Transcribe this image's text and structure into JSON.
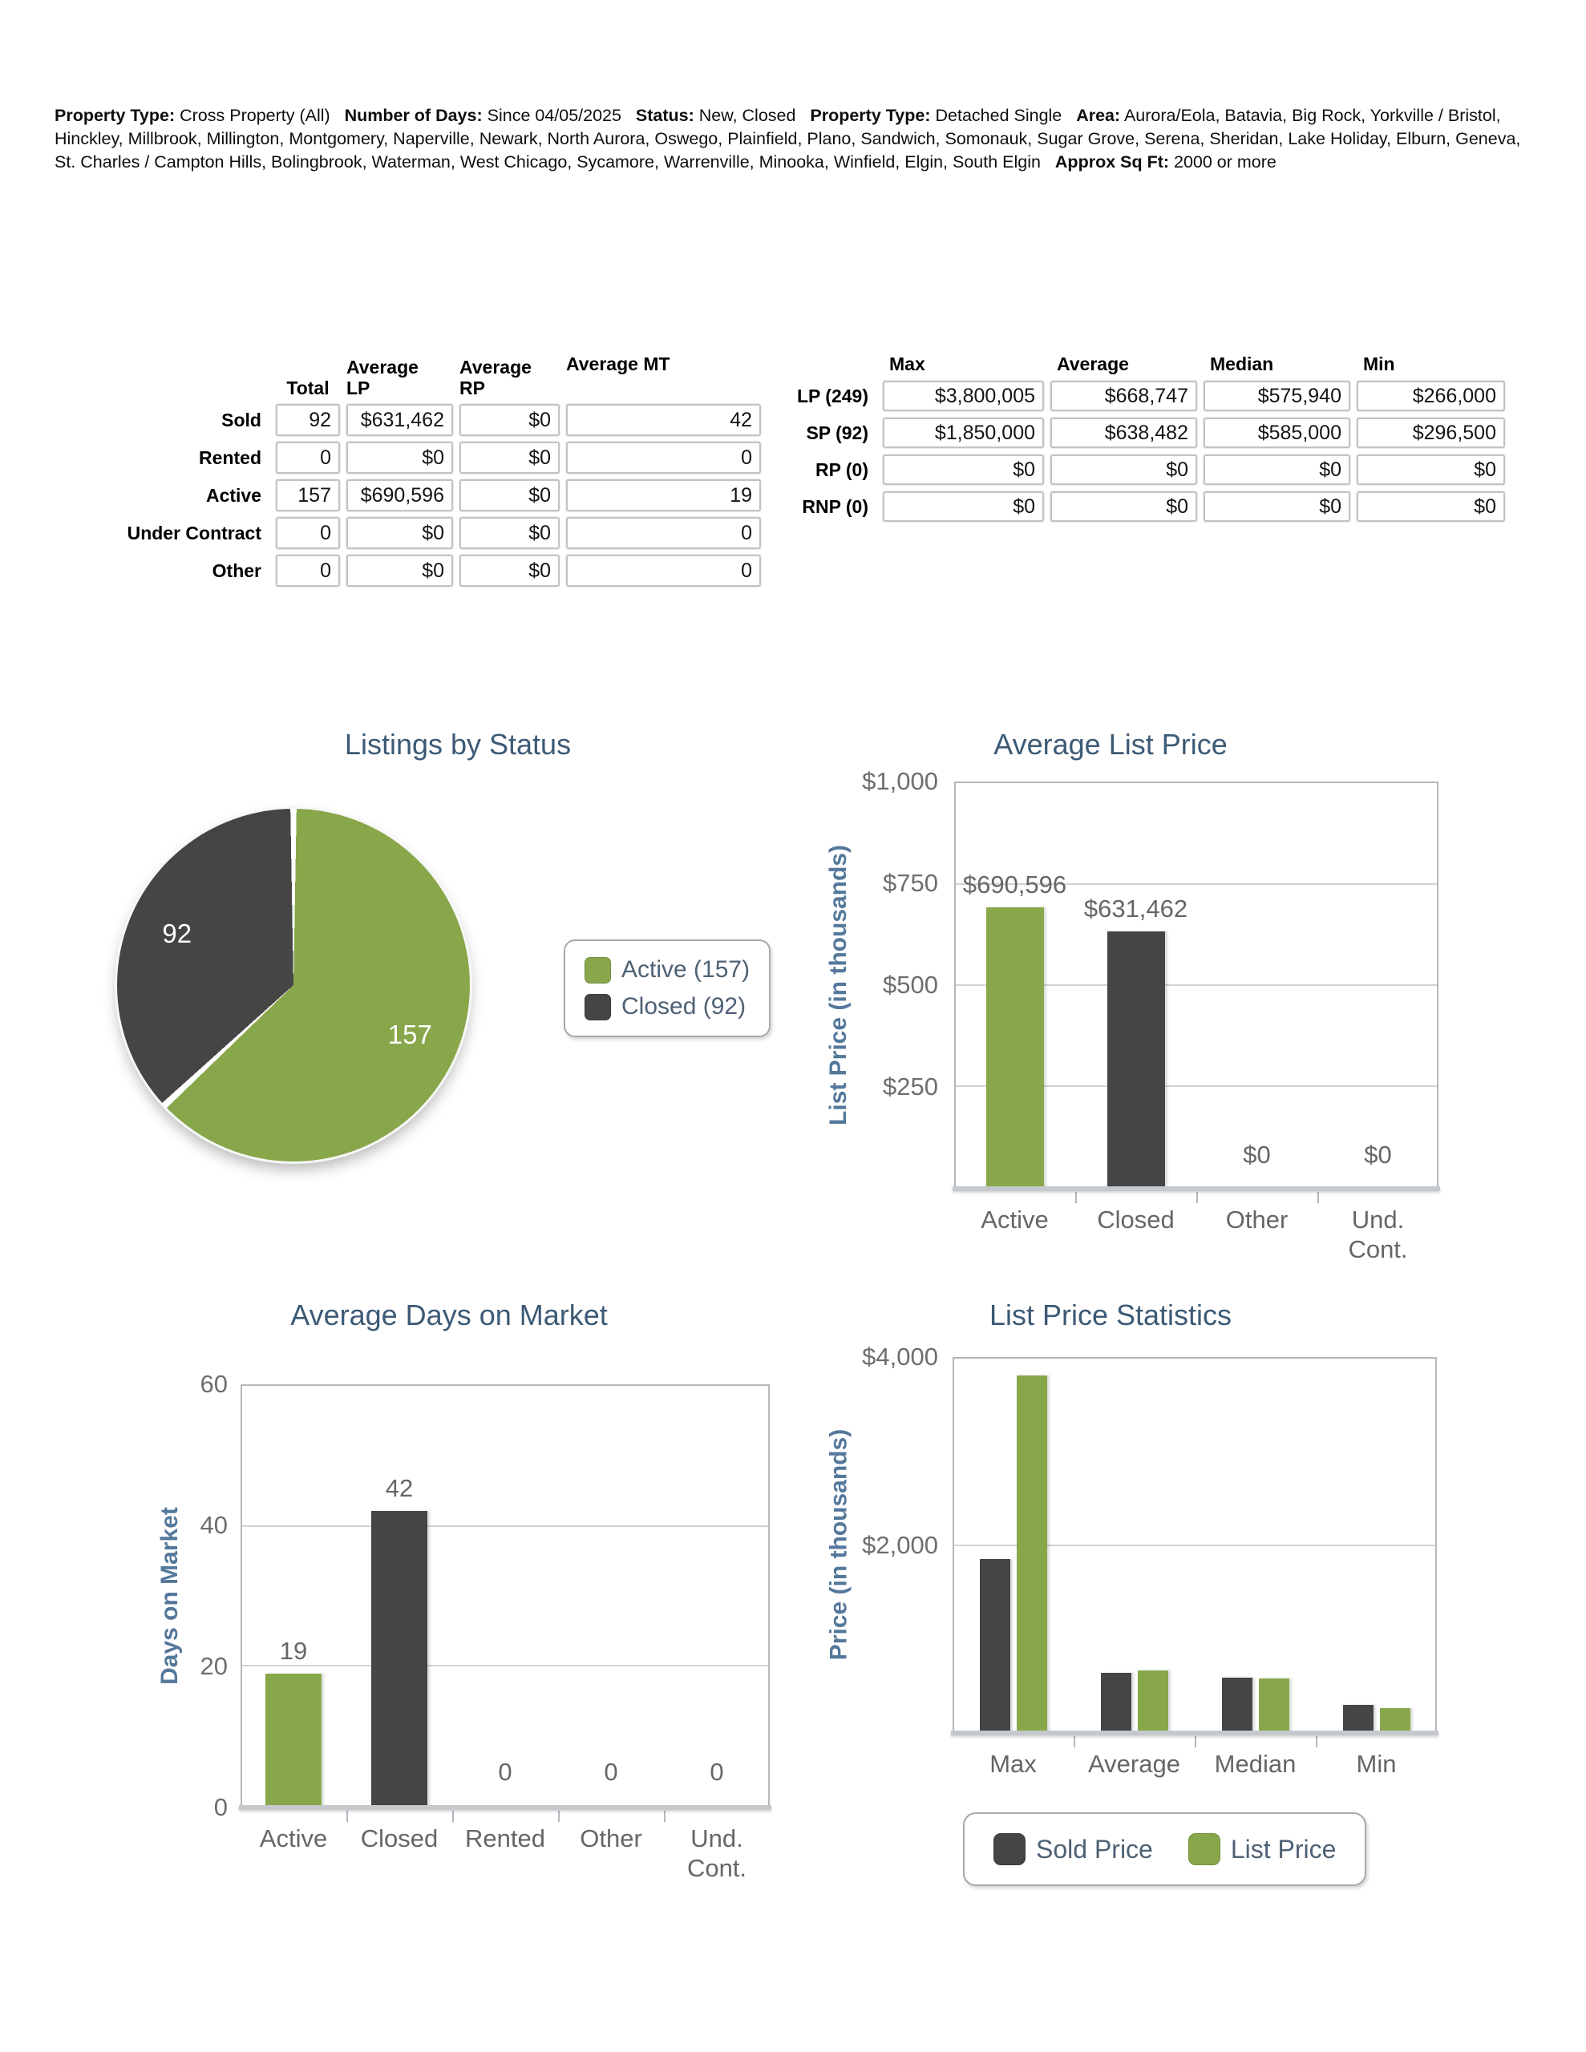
{
  "criteria": {
    "segments": [
      {
        "label": "Property Type:",
        "value": "Cross Property (All)"
      },
      {
        "label": "Number of Days:",
        "value": "Since 04/05/2025"
      },
      {
        "label": "Status:",
        "value": "New, Closed"
      },
      {
        "label": "Property Type:",
        "value": "Detached Single"
      },
      {
        "label": "Area:",
        "value": "Aurora/Eola, Batavia, Big Rock, Yorkville / Bristol, Hinckley, Millbrook, Millington, Montgomery, Naperville, Newark, North Aurora, Oswego, Plainfield, Plano, Sandwich, Somonauk, Sugar Grove, Serena, Sheridan, Lake Holiday, Elburn, Geneva, St. Charles / Campton Hills, Bolingbrook, Waterman, West Chicago, Sycamore, Warrenville, Minooka, Winfield, Elgin, South Elgin"
      },
      {
        "label": "Approx Sq Ft:",
        "value": "2000 or more"
      }
    ]
  },
  "status_table": {
    "columns": [
      "Total",
      "Average LP",
      "Average RP",
      "Average MT"
    ],
    "rows": [
      {
        "label": "Sold",
        "values": [
          "92",
          "$631,462",
          "$0",
          "42"
        ]
      },
      {
        "label": "Rented",
        "values": [
          "0",
          "$0",
          "$0",
          "0"
        ]
      },
      {
        "label": "Active",
        "values": [
          "157",
          "$690,596",
          "$0",
          "19"
        ]
      },
      {
        "label": "Under Contract",
        "values": [
          "0",
          "$0",
          "$0",
          "0"
        ]
      },
      {
        "label": "Other",
        "values": [
          "0",
          "$0",
          "$0",
          "0"
        ]
      }
    ]
  },
  "price_table": {
    "columns": [
      "Max",
      "Average",
      "Median",
      "Min"
    ],
    "rows": [
      {
        "label": "LP (249)",
        "values": [
          "$3,800,005",
          "$668,747",
          "$575,940",
          "$266,000"
        ]
      },
      {
        "label": "SP (92)",
        "values": [
          "$1,850,000",
          "$638,482",
          "$585,000",
          "$296,500"
        ]
      },
      {
        "label": "RP (0)",
        "values": [
          "$0",
          "$0",
          "$0",
          "$0"
        ]
      },
      {
        "label": "RNP (0)",
        "values": [
          "$0",
          "$0",
          "$0",
          "$0"
        ]
      }
    ]
  },
  "colors": {
    "green": "#88A74B",
    "dark": "#454545",
    "title_blue": "#3C5A75",
    "axis_blue": "#54789B",
    "text_gray": "#666666"
  },
  "chart_data": [
    {
      "type": "pie",
      "title": "Listings by Status",
      "slices": [
        {
          "label": "Active",
          "value": 157,
          "data_label": "157",
          "color": "#88A74B"
        },
        {
          "label": "Closed",
          "value": 92,
          "data_label": "92",
          "color": "#454545"
        }
      ],
      "legend": [
        {
          "text": "Active (157)",
          "color": "#88A74B"
        },
        {
          "text": "Closed (92)",
          "color": "#454545"
        }
      ],
      "legend_position": "right"
    },
    {
      "type": "bar",
      "title": "Average List Price",
      "ylabel": "List Price (in thousands)",
      "ylim": [
        0,
        1000
      ],
      "grid": true,
      "yticks": [
        {
          "label": "$1,000",
          "value": 1000
        },
        {
          "label": "$750",
          "value": 750
        },
        {
          "label": "$500",
          "value": 500
        },
        {
          "label": "$250",
          "value": 250
        }
      ],
      "categories": [
        "Active",
        "Closed",
        "Other",
        "Und. Cont."
      ],
      "values": [
        690.596,
        631.462,
        0,
        0
      ],
      "value_labels": [
        "$690,596",
        "$631,462",
        "$0",
        "$0"
      ],
      "bar_colors": [
        "#88A74B",
        "#454545",
        "#88A74B",
        "#454545"
      ]
    },
    {
      "type": "bar",
      "title": "Average Days on Market",
      "ylabel": "Days on Market",
      "ylim": [
        0,
        60
      ],
      "grid": true,
      "yticks": [
        {
          "label": "60",
          "value": 60
        },
        {
          "label": "40",
          "value": 40
        },
        {
          "label": "20",
          "value": 20
        },
        {
          "label": "0",
          "value": 0
        }
      ],
      "categories": [
        "Active",
        "Closed",
        "Rented",
        "Other",
        "Und. Cont."
      ],
      "values": [
        19,
        42,
        0,
        0,
        0
      ],
      "value_labels": [
        "19",
        "42",
        "0",
        "0",
        "0"
      ],
      "bar_colors": [
        "#88A74B",
        "#454545",
        "#88A74B",
        "#454545",
        "#88A74B"
      ]
    },
    {
      "type": "grouped_bar",
      "title": "List Price Statistics",
      "ylabel": "Price (in thousands)",
      "ylim": [
        0,
        4000
      ],
      "grid": true,
      "legend_position": "bottom",
      "yticks": [
        {
          "label": "$4,000",
          "value": 4000
        },
        {
          "label": "$2,000",
          "value": 2000
        }
      ],
      "categories": [
        "Max",
        "Average",
        "Median",
        "Min"
      ],
      "series": [
        {
          "name": "Sold Price",
          "color": "#454545",
          "values": [
            1850,
            638.482,
            585,
            296.5
          ]
        },
        {
          "name": "List Price",
          "color": "#88A74B",
          "values": [
            3800.005,
            668.747,
            575.94,
            266
          ]
        }
      ]
    }
  ]
}
